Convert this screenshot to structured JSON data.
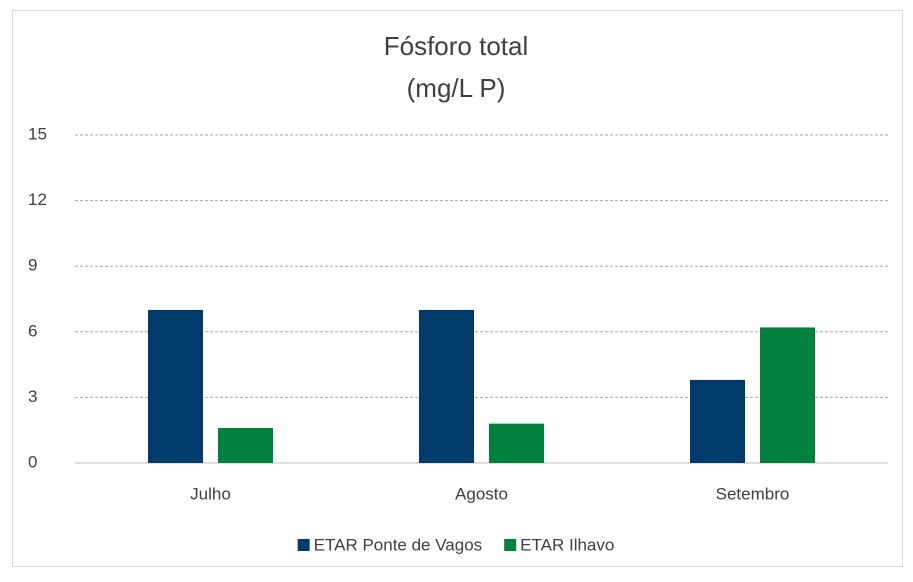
{
  "chart_data": {
    "type": "bar",
    "title": "Fósforo total",
    "subtitle": "(mg/L P)",
    "categories": [
      "Julho",
      "Agosto",
      "Setembro"
    ],
    "series": [
      {
        "name": "ETAR Ponte de Vagos",
        "color": "#003b6b",
        "values": [
          7.0,
          7.0,
          3.8
        ]
      },
      {
        "name": "ETAR Ilhavo",
        "color": "#00813f",
        "values": [
          1.6,
          1.8,
          6.2
        ]
      }
    ],
    "ylim": [
      0,
      15
    ],
    "yticks": [
      0,
      3,
      6,
      9,
      12,
      15
    ],
    "grid": true,
    "legend": "bottom"
  }
}
